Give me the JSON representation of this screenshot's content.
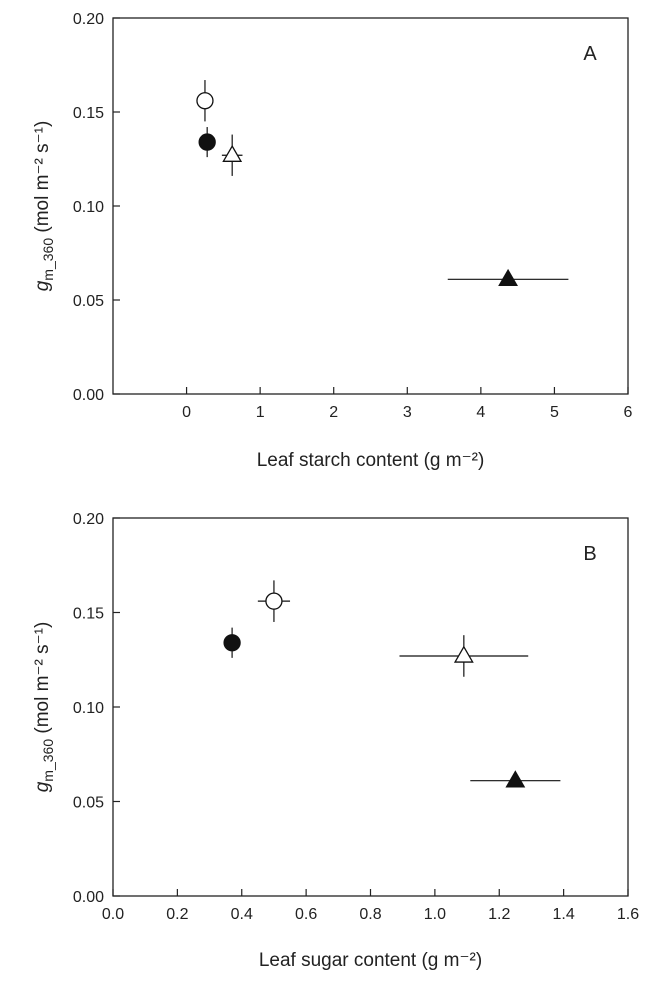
{
  "chart_data": [
    {
      "type": "scatter",
      "panel_label": "A",
      "xlabel": "Leaf starch content (g m⁻²)",
      "ylabel": {
        "main": "g",
        "subscript": "m_360",
        "units": " (mol m⁻² s⁻¹)"
      },
      "xlim": [
        -1,
        6
      ],
      "ylim": [
        0,
        0.2
      ],
      "xticks": [
        0,
        1,
        2,
        3,
        4,
        5,
        6
      ],
      "xtick_labels": [
        "0",
        "1",
        "2",
        "3",
        "4",
        "5",
        "6"
      ],
      "yticks": [
        0,
        0.05,
        0.1,
        0.15,
        0.2
      ],
      "ytick_labels": [
        "0.00",
        "0.05",
        "0.10",
        "0.15",
        "0.20"
      ],
      "grid": false,
      "points": [
        {
          "marker": "circle-open",
          "x": 0.25,
          "y": 0.156,
          "x_err": 0.05,
          "y_err": 0.011
        },
        {
          "marker": "circle-filled",
          "x": 0.28,
          "y": 0.134,
          "x_err": 0.05,
          "y_err": 0.008
        },
        {
          "marker": "triangle-open",
          "x": 0.62,
          "y": 0.127,
          "x_err": 0.14,
          "y_err": 0.011
        },
        {
          "marker": "triangle-filled",
          "x": 4.37,
          "y": 0.061,
          "x_err": 0.82,
          "y_err": 0.002
        }
      ]
    },
    {
      "type": "scatter",
      "panel_label": "B",
      "xlabel": "Leaf sugar content (g m⁻²)",
      "ylabel": {
        "main": "g",
        "subscript": "m_360",
        "units": " (mol m⁻² s⁻¹)"
      },
      "xlim": [
        0,
        1.6
      ],
      "ylim": [
        0,
        0.2
      ],
      "xticks": [
        0,
        0.2,
        0.4,
        0.6,
        0.8,
        1.0,
        1.2,
        1.4,
        1.6
      ],
      "xtick_labels": [
        "0.0",
        "0.2",
        "0.4",
        "0.6",
        "0.8",
        "1.0",
        "1.2",
        "1.4",
        "1.6"
      ],
      "yticks": [
        0,
        0.05,
        0.1,
        0.15,
        0.2
      ],
      "ytick_labels": [
        "0.00",
        "0.05",
        "0.10",
        "0.15",
        "0.20"
      ],
      "grid": false,
      "points": [
        {
          "marker": "circle-open",
          "x": 0.5,
          "y": 0.156,
          "x_err": 0.05,
          "y_err": 0.011
        },
        {
          "marker": "circle-filled",
          "x": 0.37,
          "y": 0.134,
          "x_err": 0.02,
          "y_err": 0.008
        },
        {
          "marker": "triangle-open",
          "x": 1.09,
          "y": 0.127,
          "x_err": 0.2,
          "y_err": 0.011
        },
        {
          "marker": "triangle-filled",
          "x": 1.25,
          "y": 0.061,
          "x_err": 0.14,
          "y_err": 0.002
        }
      ]
    }
  ]
}
